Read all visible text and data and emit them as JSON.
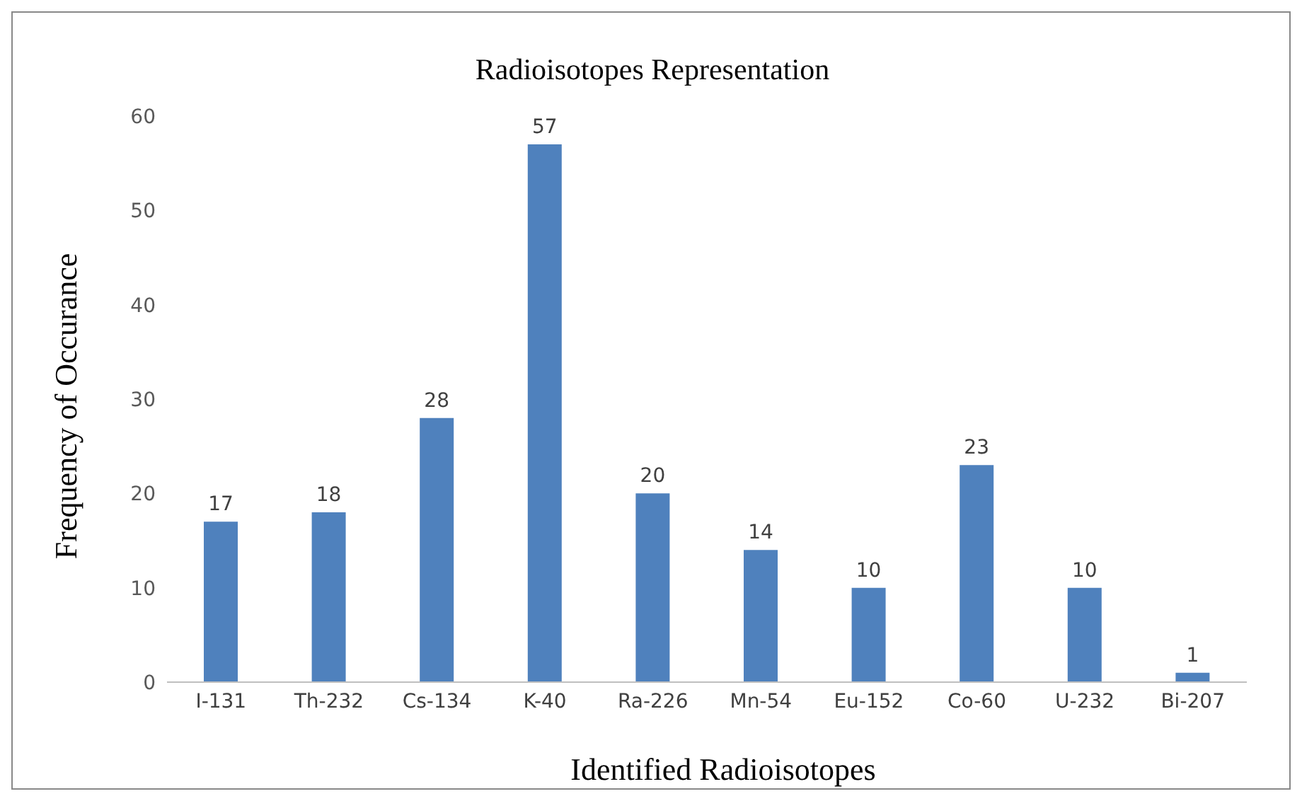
{
  "chart_data": {
    "type": "bar",
    "title": "Radioisotopes Representation",
    "xlabel": "Identified Radioisotopes",
    "ylabel": "Frequency of Occurance",
    "categories": [
      "I-131",
      "Th-232",
      "Cs-134",
      "K-40",
      "Ra-226",
      "Mn-54",
      "Eu-152",
      "Co-60",
      "U-232",
      "Bi-207"
    ],
    "values": [
      17,
      18,
      28,
      57,
      20,
      14,
      10,
      23,
      10,
      1
    ],
    "color": "#4f81bd",
    "ylim": [
      0,
      60
    ],
    "yticks": [
      0,
      10,
      20,
      30,
      40,
      50,
      60
    ],
    "data_labels": true,
    "grid": false,
    "legend": false
  }
}
